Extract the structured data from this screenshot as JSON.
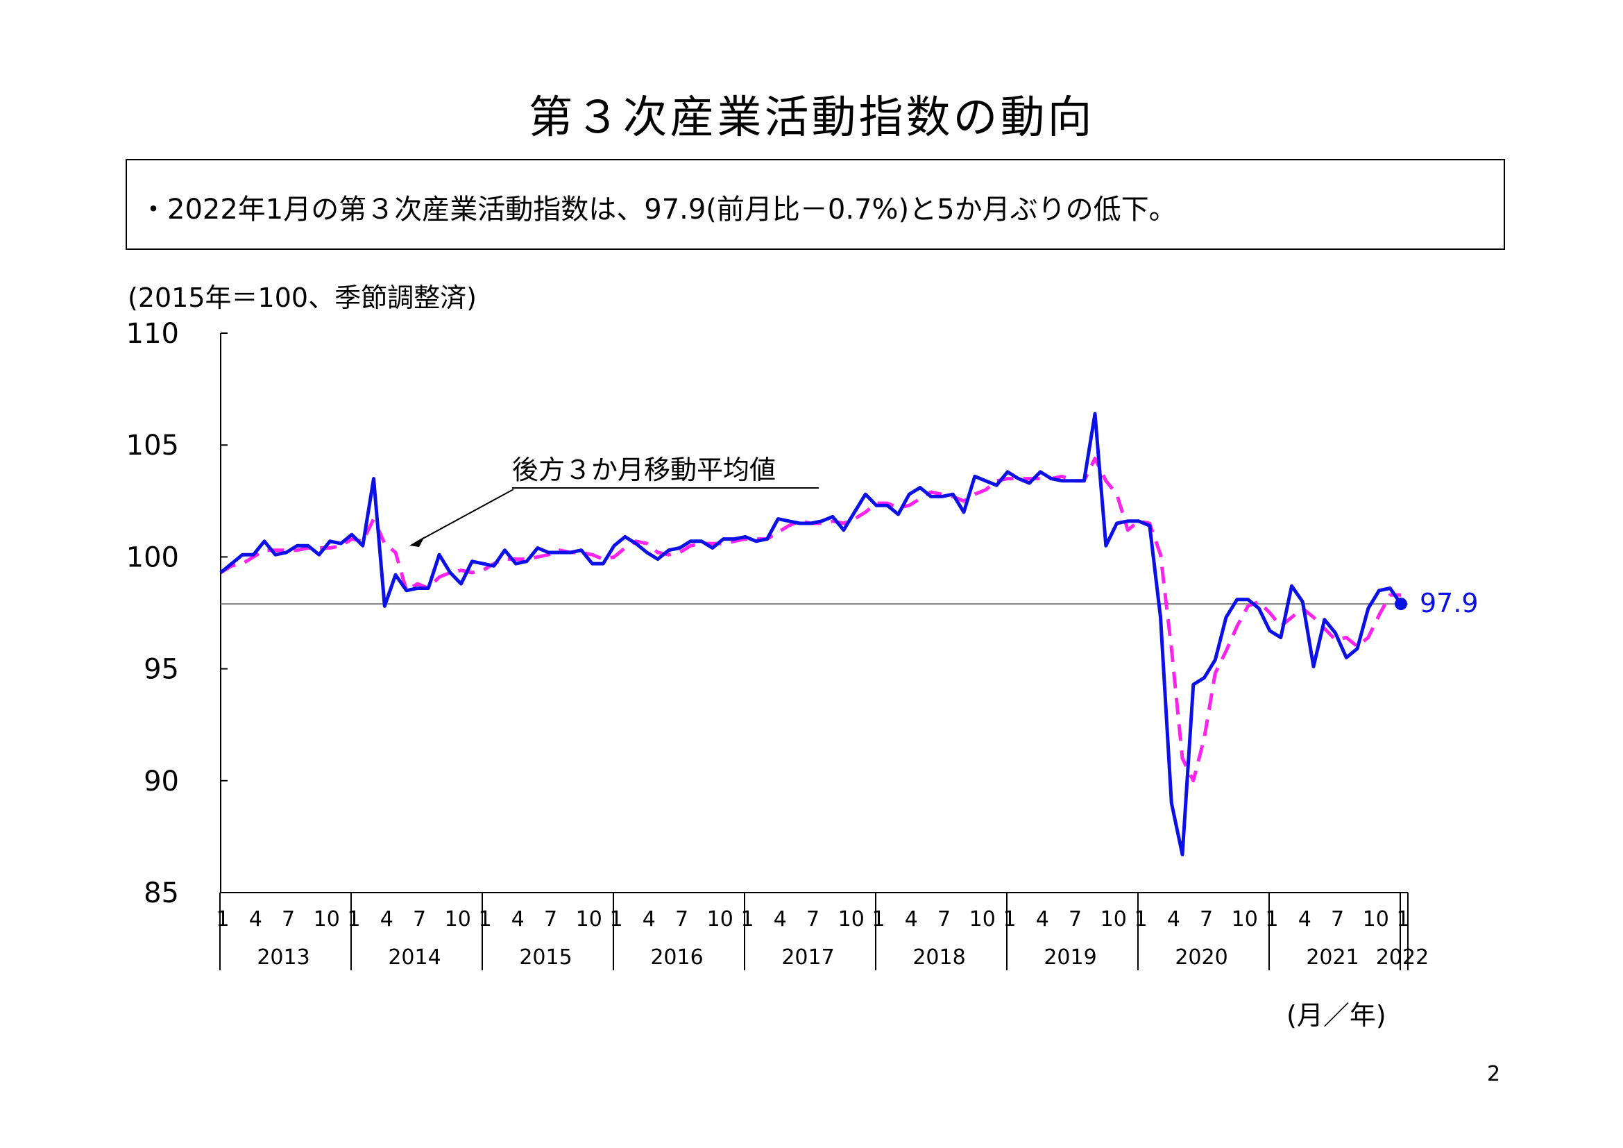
{
  "page": {
    "title": "第３次産業活動指数の動向",
    "summary": "・2022年1月の第３次産業活動指数は、97.9(前月比－0.7%)と5か月ぶりの低下。",
    "unit_label": "(2015年＝100、季節調整済)",
    "x_unit_label": "(月／年)",
    "page_number": "2"
  },
  "chart_data": {
    "type": "line",
    "title": "",
    "xlabel": "(月／年)",
    "ylabel": "(2015年＝100、季節調整済)",
    "ylim": [
      85,
      110
    ],
    "yticks": [
      85,
      90,
      95,
      100,
      105,
      110
    ],
    "grid": false,
    "legend": "none",
    "start": "2013-01",
    "month_tick_labels": [
      "1",
      "4",
      "7",
      "10"
    ],
    "years": [
      "2013",
      "2014",
      "2015",
      "2016",
      "2017",
      "2018",
      "2019",
      "2020",
      "2021",
      "2022"
    ],
    "reference_line": 97.9,
    "annotation": "後方３か月移動平均値",
    "last_value_label": "97.9",
    "colors": {
      "index": "#0a10e6",
      "moving_average": "#ff22ee",
      "reference": "#808080",
      "last_label": "#0a10e6"
    },
    "series": [
      {
        "name": "第３次産業活動指数",
        "style": "solid",
        "values": [
          99.3,
          99.7,
          100.1,
          100.1,
          100.7,
          100.1,
          100.2,
          100.5,
          100.5,
          100.1,
          100.7,
          100.6,
          101.0,
          100.5,
          103.5,
          97.8,
          99.2,
          98.5,
          98.6,
          98.6,
          100.1,
          99.3,
          98.8,
          99.8,
          99.7,
          99.6,
          100.3,
          99.7,
          99.8,
          100.4,
          100.2,
          100.2,
          100.2,
          100.3,
          99.7,
          99.7,
          100.5,
          100.9,
          100.6,
          100.2,
          99.9,
          100.3,
          100.4,
          100.7,
          100.7,
          100.4,
          100.8,
          100.8,
          100.9,
          100.7,
          100.8,
          101.7,
          101.6,
          101.5,
          101.5,
          101.6,
          101.8,
          101.2,
          102.0,
          102.8,
          102.3,
          102.3,
          101.9,
          102.8,
          103.1,
          102.7,
          102.7,
          102.8,
          102.0,
          103.6,
          103.4,
          103.2,
          103.8,
          103.5,
          103.3,
          103.8,
          103.5,
          103.4,
          103.4,
          103.4,
          106.4,
          100.5,
          101.5,
          101.6,
          101.6,
          101.4,
          97.3,
          89.0,
          86.7,
          94.3,
          94.6,
          95.4,
          97.3,
          98.1,
          98.1,
          97.7,
          96.7,
          96.4,
          98.7,
          98.0,
          95.1,
          97.2,
          96.6,
          95.5,
          95.9,
          97.7,
          98.5,
          98.6,
          97.9
        ]
      },
      {
        "name": "後方３か月移動平均値",
        "style": "dashed",
        "values": [
          99.3,
          99.6,
          99.7,
          100.0,
          100.3,
          100.3,
          100.3,
          100.3,
          100.4,
          100.4,
          100.4,
          100.5,
          100.8,
          100.7,
          101.7,
          100.6,
          100.2,
          98.5,
          98.8,
          98.6,
          99.1,
          99.3,
          99.4,
          99.3,
          99.4,
          99.7,
          99.9,
          99.9,
          99.9,
          100.0,
          100.1,
          100.3,
          100.2,
          100.2,
          100.1,
          99.9,
          100.0,
          100.4,
          100.7,
          100.6,
          100.2,
          100.1,
          100.2,
          100.5,
          100.6,
          100.6,
          100.6,
          100.7,
          100.8,
          100.8,
          100.8,
          101.1,
          101.4,
          101.6,
          101.5,
          101.5,
          101.6,
          101.5,
          101.7,
          102.0,
          102.4,
          102.4,
          102.2,
          102.3,
          102.6,
          102.9,
          102.8,
          102.7,
          102.5,
          102.8,
          103.0,
          103.4,
          103.5,
          103.5,
          103.5,
          103.5,
          103.5,
          103.6,
          103.4,
          103.4,
          104.4,
          103.4,
          102.8,
          101.2,
          101.6,
          101.5,
          100.1,
          95.9,
          91.0,
          90.0,
          91.9,
          94.8,
          95.8,
          96.9,
          97.8,
          98.0,
          97.5,
          96.9,
          97.3,
          97.7,
          97.3,
          96.8,
          96.3,
          96.4,
          96.0,
          96.4,
          97.4,
          98.3,
          98.3
        ]
      }
    ]
  }
}
